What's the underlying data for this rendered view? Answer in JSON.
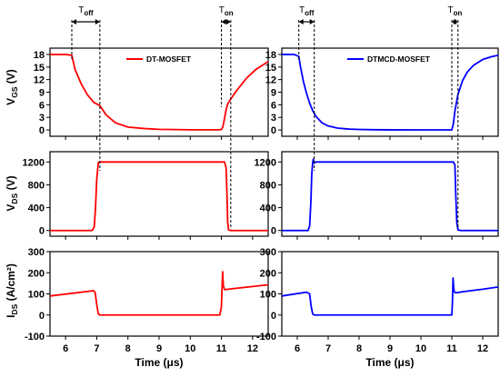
{
  "chart_data": [
    {
      "id": "vgs-dt",
      "type": "line",
      "ylabel": "VGS (V)",
      "xlim": [
        5.5,
        12.5
      ],
      "ylim": [
        -1.5,
        19.5
      ],
      "yticks": [
        0,
        3,
        6,
        9,
        12,
        15,
        18
      ],
      "grid": false,
      "legend_position": "top-right",
      "series": [
        {
          "name": "DT-MOSFET",
          "color": "#ff0000",
          "x": [
            5.5,
            6.0,
            6.2,
            6.3,
            6.5,
            6.7,
            6.9,
            7.0,
            7.1,
            7.3,
            7.6,
            8.0,
            8.5,
            9.0,
            9.5,
            10.0,
            10.5,
            10.9,
            11.0,
            11.05,
            11.1,
            11.15,
            11.2,
            11.3,
            11.5,
            11.8,
            12.1,
            12.5
          ],
          "y": [
            18,
            18,
            17.8,
            14.5,
            11.0,
            8.4,
            6.6,
            6.2,
            5.8,
            3.6,
            1.7,
            0.7,
            0.35,
            0.15,
            0.1,
            0.05,
            0.05,
            0.05,
            0.1,
            0.8,
            2.8,
            4.8,
            6.2,
            7.4,
            9.5,
            12.3,
            14.4,
            16.3
          ]
        }
      ]
    },
    {
      "id": "vgs-dtmcd",
      "type": "line",
      "ylabel": "",
      "xlim": [
        5.5,
        12.5
      ],
      "ylim": [
        -1.5,
        19.5
      ],
      "yticks": [
        0,
        3,
        6,
        9,
        12,
        15,
        18
      ],
      "grid": false,
      "legend_position": "top-right",
      "series": [
        {
          "name": "DTMCD-MOSFET",
          "color": "#0000ff",
          "x": [
            5.5,
            5.9,
            6.05,
            6.1,
            6.2,
            6.3,
            6.4,
            6.5,
            6.6,
            6.8,
            7.0,
            7.3,
            7.7,
            8.0,
            8.5,
            9.0,
            10.0,
            11.0,
            11.05,
            11.1,
            11.2,
            11.35,
            11.5,
            11.7,
            12.0,
            12.3,
            12.5
          ],
          "y": [
            18,
            18,
            17.5,
            15.2,
            11.5,
            8.7,
            6.4,
            4.6,
            3.3,
            1.7,
            0.95,
            0.45,
            0.2,
            0.12,
            0.06,
            0.03,
            0.02,
            0.02,
            1.5,
            4.5,
            8.5,
            11.8,
            13.8,
            15.4,
            16.8,
            17.5,
            17.8
          ]
        }
      ]
    },
    {
      "id": "vds-dt",
      "type": "line",
      "ylabel": "VDS (V)",
      "xlim": [
        5.5,
        12.5
      ],
      "ylim": [
        -100,
        1380
      ],
      "yticks": [
        0,
        400,
        800,
        1200
      ],
      "grid": false,
      "series": [
        {
          "name": "DT-MOSFET",
          "color": "#ff0000",
          "x": [
            5.5,
            6.85,
            6.92,
            6.96,
            7.0,
            7.05,
            7.1,
            7.3,
            10.9,
            11.1,
            11.15,
            11.18,
            11.2,
            11.23,
            11.3,
            12.5
          ],
          "y": [
            0,
            0,
            60,
            400,
            900,
            1190,
            1200,
            1200,
            1200,
            1200,
            1100,
            600,
            150,
            10,
            0,
            0
          ]
        }
      ]
    },
    {
      "id": "vds-dtmcd",
      "type": "line",
      "ylabel": "",
      "xlim": [
        5.5,
        12.5
      ],
      "ylim": [
        -100,
        1380
      ],
      "yticks": [
        0,
        400,
        800,
        1200
      ],
      "grid": false,
      "series": [
        {
          "name": "DTMCD-MOSFET",
          "color": "#0000ff",
          "x": [
            5.5,
            6.35,
            6.4,
            6.44,
            6.47,
            6.5,
            6.52,
            6.55,
            6.6,
            11.05,
            11.1,
            11.13,
            11.16,
            11.2,
            11.3,
            12.5
          ],
          "y": [
            0,
            0,
            80,
            500,
            1000,
            1190,
            1250,
            1180,
            1200,
            1200,
            1150,
            600,
            150,
            10,
            0,
            0
          ]
        }
      ]
    },
    {
      "id": "ids-dt",
      "type": "line",
      "ylabel": "IDS (A/cm²)",
      "xlabel": "Time (μs)",
      "xlim": [
        5.5,
        12.5
      ],
      "ylim": [
        -100,
        300
      ],
      "yticks": [
        -100,
        0,
        100,
        200,
        300
      ],
      "xticks": [
        6,
        7,
        8,
        9,
        10,
        11,
        12
      ],
      "grid": false,
      "series": [
        {
          "name": "DT-MOSFET",
          "color": "#ff0000",
          "x": [
            5.5,
            6.9,
            6.95,
            7.0,
            7.05,
            7.1,
            10.95,
            11.0,
            11.02,
            11.04,
            11.06,
            11.1,
            11.5,
            12.0,
            12.5
          ],
          "y": [
            90,
            115,
            105,
            50,
            5,
            0,
            0,
            40,
            130,
            205,
            140,
            120,
            127,
            135,
            143
          ]
        }
      ]
    },
    {
      "id": "ids-dtmcd",
      "type": "line",
      "ylabel": "",
      "xlabel": "Time (μs)",
      "xlim": [
        5.5,
        12.5
      ],
      "ylim": [
        -100,
        300
      ],
      "yticks": [
        -100,
        0,
        100,
        200,
        300
      ],
      "xticks": [
        6,
        7,
        8,
        9,
        10,
        11,
        12
      ],
      "grid": false,
      "series": [
        {
          "name": "DTMCD-MOSFET",
          "color": "#0000ff",
          "x": [
            5.5,
            6.3,
            6.4,
            6.45,
            6.5,
            6.55,
            11.0,
            11.02,
            11.04,
            11.06,
            11.08,
            11.12,
            11.5,
            12.0,
            12.5
          ],
          "y": [
            90,
            108,
            100,
            40,
            5,
            0,
            0,
            60,
            175,
            130,
            110,
            105,
            113,
            122,
            133
          ]
        }
      ]
    }
  ],
  "annotations": [
    {
      "panel": "vgs-dt",
      "label_main": "T",
      "label_sub": "off",
      "x1": 6.2,
      "x2": 7.1
    },
    {
      "panel": "vgs-dt",
      "label_main": "T",
      "label_sub": "on",
      "x1": 11.0,
      "x2": 11.3
    },
    {
      "panel": "vgs-dtmcd",
      "label_main": "T",
      "label_sub": "off",
      "x1": 6.05,
      "x2": 6.55
    },
    {
      "panel": "vgs-dtmcd",
      "label_main": "T",
      "label_sub": "on",
      "x1": 11.0,
      "x2": 11.2
    }
  ]
}
